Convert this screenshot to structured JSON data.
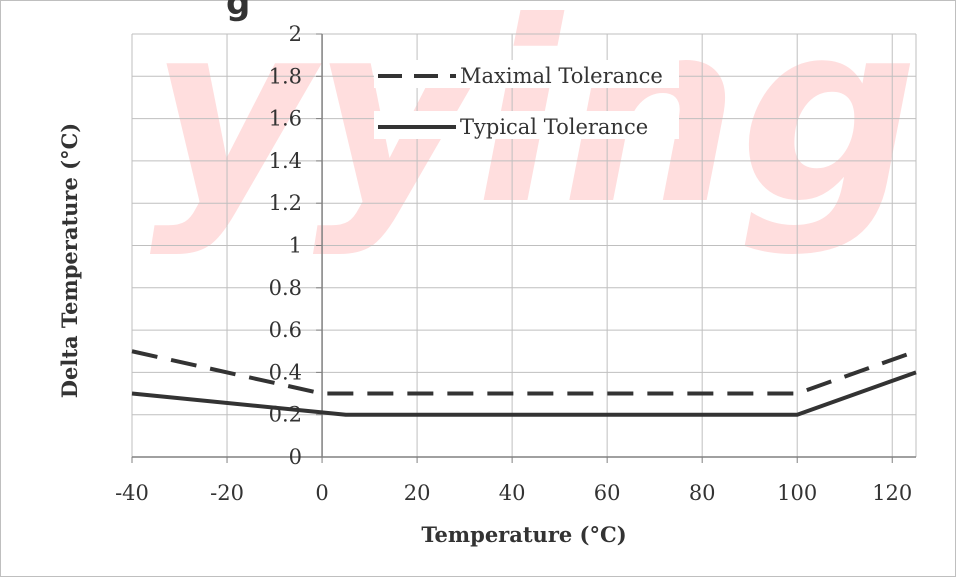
{
  "chart_data": {
    "type": "line",
    "title": "",
    "xlabel": "Temperature (°C)",
    "ylabel": "Delta Temperature (°C)",
    "xlim": [
      -40,
      125
    ],
    "ylim": [
      0,
      2
    ],
    "x_ticks": [
      -40,
      -20,
      0,
      20,
      40,
      60,
      80,
      100,
      120
    ],
    "x_tick_labels": [
      "-40",
      "-20",
      "0",
      "20",
      "40",
      "60",
      "80",
      "100",
      "120"
    ],
    "y_ticks": [
      0,
      0.2,
      0.4,
      0.6,
      0.8,
      1,
      1.2,
      1.4,
      1.6,
      1.8,
      2
    ],
    "y_tick_labels": [
      "0",
      "0.2",
      "0.4",
      "0.6",
      "0.8",
      "1",
      "1.2",
      "1.4",
      "1.6",
      "1.8",
      "2"
    ],
    "grid": true,
    "legend_position": "top-center",
    "series": [
      {
        "name": "Maximal Tolerance",
        "style": "dashed",
        "color": "#333333",
        "x": [
          -40,
          0,
          100,
          125
        ],
        "y": [
          0.5,
          0.3,
          0.3,
          0.5
        ]
      },
      {
        "name": "Typical Tolerance",
        "style": "solid",
        "color": "#333333",
        "x": [
          -40,
          5,
          100,
          125
        ],
        "y": [
          0.3,
          0.2,
          0.2,
          0.4
        ]
      }
    ]
  },
  "watermark_text": "yying",
  "title_fragment": "g"
}
